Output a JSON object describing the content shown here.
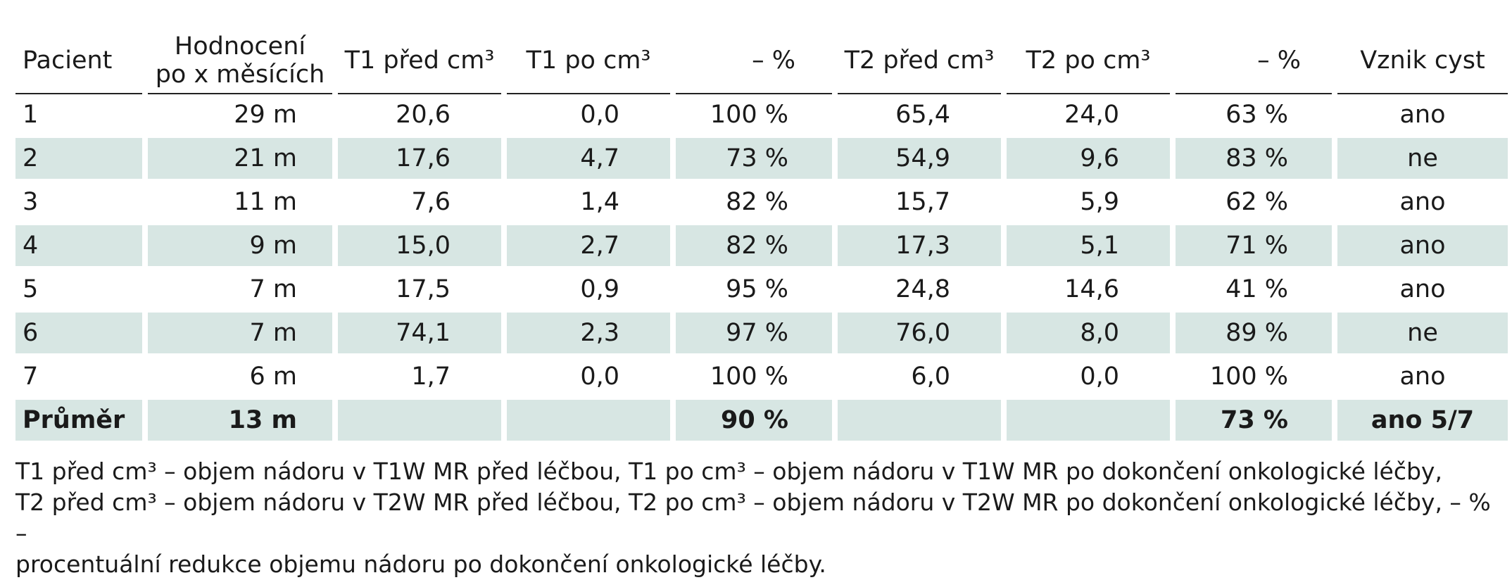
{
  "table": {
    "headers": [
      "Pacient",
      "Hodnocení\npo x měsících",
      "T1 před cm³",
      "T1 po cm³",
      "– %",
      "T2 před cm³",
      "T2 po cm³",
      "– %",
      "Vznik cyst"
    ],
    "header_lines": {
      "col2_line1": "Hodnocení",
      "col2_line2": "po x měsících"
    },
    "rows": [
      [
        "1",
        "29 m",
        "20,6",
        "0,0",
        "100 %",
        "65,4",
        "24,0",
        "63 %",
        "ano"
      ],
      [
        "2",
        "21 m",
        "17,6",
        "4,7",
        "73 %",
        "54,9",
        "9,6",
        "83 %",
        "ne"
      ],
      [
        "3",
        "11 m",
        "7,6",
        "1,4",
        "82 %",
        "15,7",
        "5,9",
        "62 %",
        "ano"
      ],
      [
        "4",
        "9 m",
        "15,0",
        "2,7",
        "82 %",
        "17,3",
        "5,1",
        "71 %",
        "ano"
      ],
      [
        "5",
        "7 m",
        "17,5",
        "0,9",
        "95 %",
        "24,8",
        "14,6",
        "41 %",
        "ano"
      ],
      [
        "6",
        "7 m",
        "74,1",
        "2,3",
        "97 %",
        "76,0",
        "8,0",
        "89 %",
        "ne"
      ],
      [
        "7",
        "6 m",
        "1,7",
        "0,0",
        "100 %",
        "6,0",
        "0,0",
        "100 %",
        "ano"
      ]
    ],
    "total": [
      "Průměr",
      "13 m",
      "",
      "",
      "90 %",
      "",
      "",
      "73 %",
      "ano 5/7"
    ]
  },
  "footnote": {
    "line1": "T1 před cm³ – objem nádoru v T1W MR před léčbou, T1 po cm³  – objem nádoru v T1W MR po dokončení onkologické léčby,",
    "line2": "T2 před cm³ – objem nádoru v T2W MR před léčbou, T2 po cm³ – objem nádoru v T2W MR po dokončení onkologické léčby, – % –",
    "line3": "procentuální redukce objemu nádoru po dokončení onkologické léčby."
  },
  "colors": {
    "row_shade": "#d7e6e3",
    "text": "#1a1a1a",
    "rule": "#222222"
  }
}
